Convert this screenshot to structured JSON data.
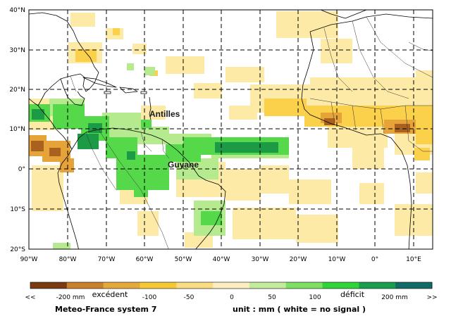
{
  "map": {
    "lat_labels": [
      "40°N",
      "30°N",
      "20°N",
      "10°N",
      "0°",
      "10°S",
      "20°S"
    ],
    "lon_labels": [
      "90°W",
      "80°W",
      "70°W",
      "60°W",
      "50°W",
      "40°W",
      "30°W",
      "20°W",
      "10°W",
      "0°",
      "10°E"
    ],
    "extent": {
      "lon": [
        -90,
        15
      ],
      "lat": [
        -20,
        40
      ]
    },
    "grid": "dashed, every 10°",
    "places": [
      {
        "name": "Antilles",
        "lon": -61,
        "lat": 13
      },
      {
        "name": "Guyane",
        "lon": -54,
        "lat": 0.5
      }
    ]
  },
  "legend": {
    "ticks": [
      "<<",
      "-200 mm",
      "-100",
      "-50",
      "0",
      "50",
      "100",
      "200 mm",
      ">>"
    ],
    "left_word": "excédent",
    "right_word": "déficit",
    "colors": [
      "#7a3b12",
      "#c8812c",
      "#e5a93b",
      "#f5c835",
      "#fadd82",
      "#fbefc0",
      "#c4ea9c",
      "#7ee063",
      "#2ed43a",
      "#1a9e4d",
      "#126b66"
    ]
  },
  "footer": {
    "source": "Meteo-France system 7",
    "unit": "unit :  mm   ( white = no signal )"
  },
  "colors": {
    "light_yellow": "#fdeaa7",
    "yellow": "#fbd04a",
    "orange": "#e6a33a",
    "brown": "#a9611f",
    "light_green": "#b6ea8e",
    "green": "#55d94b",
    "dark_green": "#1d9a46"
  }
}
